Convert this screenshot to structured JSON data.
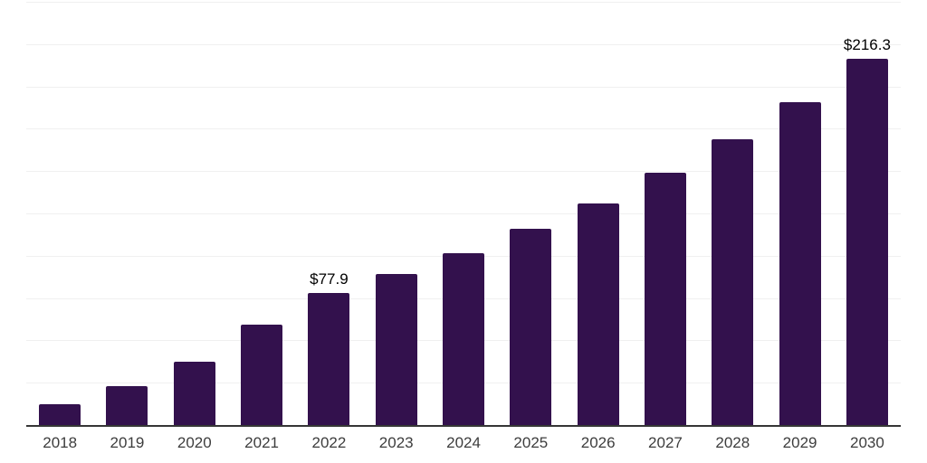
{
  "page": {
    "background": "#ffffff"
  },
  "chart_data": {
    "type": "bar",
    "title": "",
    "xlabel": "",
    "ylabel": "",
    "categories": [
      "2018",
      "2019",
      "2020",
      "2021",
      "2022",
      "2023",
      "2024",
      "2025",
      "2026",
      "2027",
      "2028",
      "2029",
      "2030"
    ],
    "values": [
      12.3,
      23.1,
      37.6,
      59.2,
      77.9,
      89.2,
      101.6,
      115.7,
      131.0,
      149.1,
      168.9,
      190.6,
      216.3
    ],
    "data_labels": [
      "",
      "",
      "",
      "",
      "$77.9",
      "",
      "",
      "",
      "",
      "",
      "",
      "",
      "$216.3"
    ],
    "ylim": [
      0,
      250
    ],
    "grid_step": 25,
    "grid": true,
    "legend": false,
    "y_tick_labels_visible": false,
    "bar_color": "#33114d",
    "gridline_color": "#f0f0f0",
    "axis_line_color": "#363636",
    "tick_label_color": "#3d3d3d",
    "data_label_color": "#000000"
  }
}
